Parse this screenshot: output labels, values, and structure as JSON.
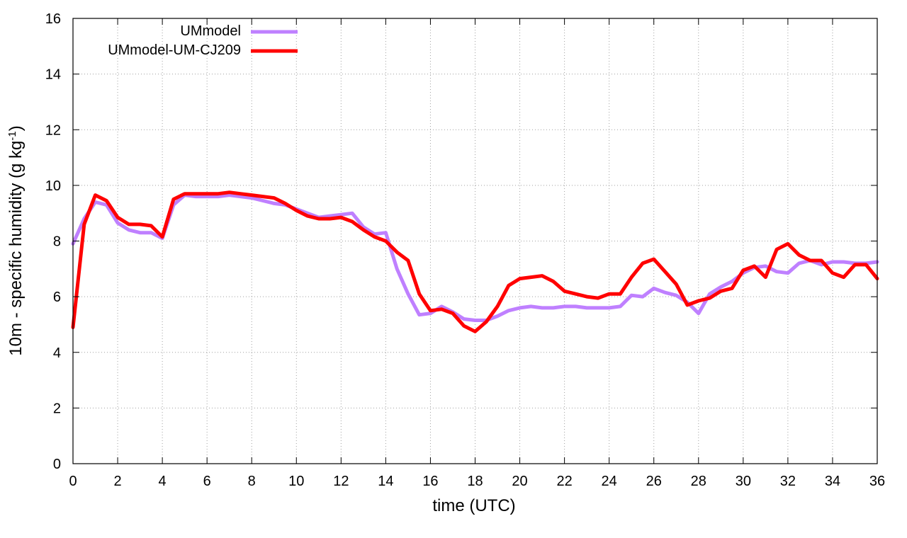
{
  "chart_data": {
    "type": "line",
    "xlabel": "time (UTC)",
    "ylabel_main": "10m - specific humidity (g kg",
    "ylabel_sup": "-1",
    "ylabel_tail": ")",
    "xlim": [
      0,
      36
    ],
    "ylim": [
      0,
      16
    ],
    "xticks": [
      0,
      2,
      4,
      6,
      8,
      10,
      12,
      14,
      16,
      18,
      20,
      22,
      24,
      26,
      28,
      30,
      32,
      34,
      36
    ],
    "yticks": [
      0,
      2,
      4,
      6,
      8,
      10,
      12,
      14,
      16
    ],
    "grid": true,
    "legend_position": "top-left",
    "series": [
      {
        "name": "UMmodel",
        "color": "#bf80ff",
        "x": [
          0,
          0.5,
          1,
          1.5,
          2,
          2.5,
          3,
          3.5,
          4,
          4.5,
          5,
          5.5,
          6,
          6.5,
          7,
          7.5,
          8,
          8.5,
          9,
          9.5,
          10,
          10.5,
          11,
          11.5,
          12,
          12.5,
          13,
          13.5,
          14,
          14.5,
          15,
          15.5,
          16,
          16.5,
          17,
          17.5,
          18,
          18.5,
          19,
          19.5,
          20,
          20.5,
          21,
          21.5,
          22,
          22.5,
          23,
          23.5,
          24,
          24.5,
          25,
          25.5,
          26,
          26.5,
          27,
          27.5,
          28,
          28.5,
          29,
          29.5,
          30,
          30.5,
          31,
          31.5,
          32,
          32.5,
          33,
          33.5,
          34,
          34.5,
          35,
          35.5,
          36
        ],
        "values": [
          7.9,
          8.8,
          9.4,
          9.3,
          8.65,
          8.4,
          8.3,
          8.3,
          8.1,
          9.3,
          9.65,
          9.6,
          9.6,
          9.6,
          9.65,
          9.6,
          9.55,
          9.45,
          9.35,
          9.3,
          9.15,
          9.0,
          8.85,
          8.9,
          8.95,
          9.0,
          8.5,
          8.25,
          8.3,
          7.0,
          6.1,
          5.35,
          5.4,
          5.65,
          5.45,
          5.2,
          5.15,
          5.15,
          5.3,
          5.5,
          5.6,
          5.65,
          5.6,
          5.6,
          5.65,
          5.65,
          5.6,
          5.6,
          5.6,
          5.65,
          6.05,
          6.0,
          6.3,
          6.15,
          6.05,
          5.8,
          5.4,
          6.1,
          6.35,
          6.55,
          6.85,
          7.05,
          7.1,
          6.9,
          6.85,
          7.2,
          7.3,
          7.15,
          7.25,
          7.25,
          7.2,
          7.2,
          7.25
        ]
      },
      {
        "name": "UMmodel-UM-CJ209",
        "color": "#ff0000",
        "x": [
          0,
          0.5,
          1,
          1.5,
          2,
          2.5,
          3,
          3.5,
          4,
          4.5,
          5,
          5.5,
          6,
          6.5,
          7,
          7.5,
          8,
          8.5,
          9,
          9.5,
          10,
          10.5,
          11,
          11.5,
          12,
          12.5,
          13,
          13.5,
          14,
          14.5,
          15,
          15.5,
          16,
          16.5,
          17,
          17.5,
          18,
          18.5,
          19,
          19.5,
          20,
          20.5,
          21,
          21.5,
          22,
          22.5,
          23,
          23.5,
          24,
          24.5,
          25,
          25.5,
          26,
          26.5,
          27,
          27.5,
          28,
          28.5,
          29,
          29.5,
          30,
          30.5,
          31,
          31.5,
          32,
          32.5,
          33,
          33.5,
          34,
          34.5,
          35,
          35.5,
          36
        ],
        "values": [
          4.9,
          8.6,
          9.65,
          9.45,
          8.85,
          8.6,
          8.6,
          8.55,
          8.15,
          9.5,
          9.7,
          9.7,
          9.7,
          9.7,
          9.75,
          9.7,
          9.65,
          9.6,
          9.55,
          9.35,
          9.1,
          8.9,
          8.8,
          8.8,
          8.85,
          8.7,
          8.4,
          8.15,
          8.0,
          7.6,
          7.3,
          6.1,
          5.5,
          5.55,
          5.4,
          4.95,
          4.75,
          5.1,
          5.65,
          6.4,
          6.65,
          6.7,
          6.75,
          6.55,
          6.2,
          6.1,
          6.0,
          5.95,
          6.1,
          6.1,
          6.7,
          7.2,
          7.35,
          6.9,
          6.45,
          5.7,
          5.85,
          5.95,
          6.2,
          6.3,
          6.95,
          7.1,
          6.7,
          7.7,
          7.9,
          7.5,
          7.3,
          7.3,
          6.85,
          6.7,
          7.15,
          7.15,
          6.65
        ]
      }
    ]
  }
}
